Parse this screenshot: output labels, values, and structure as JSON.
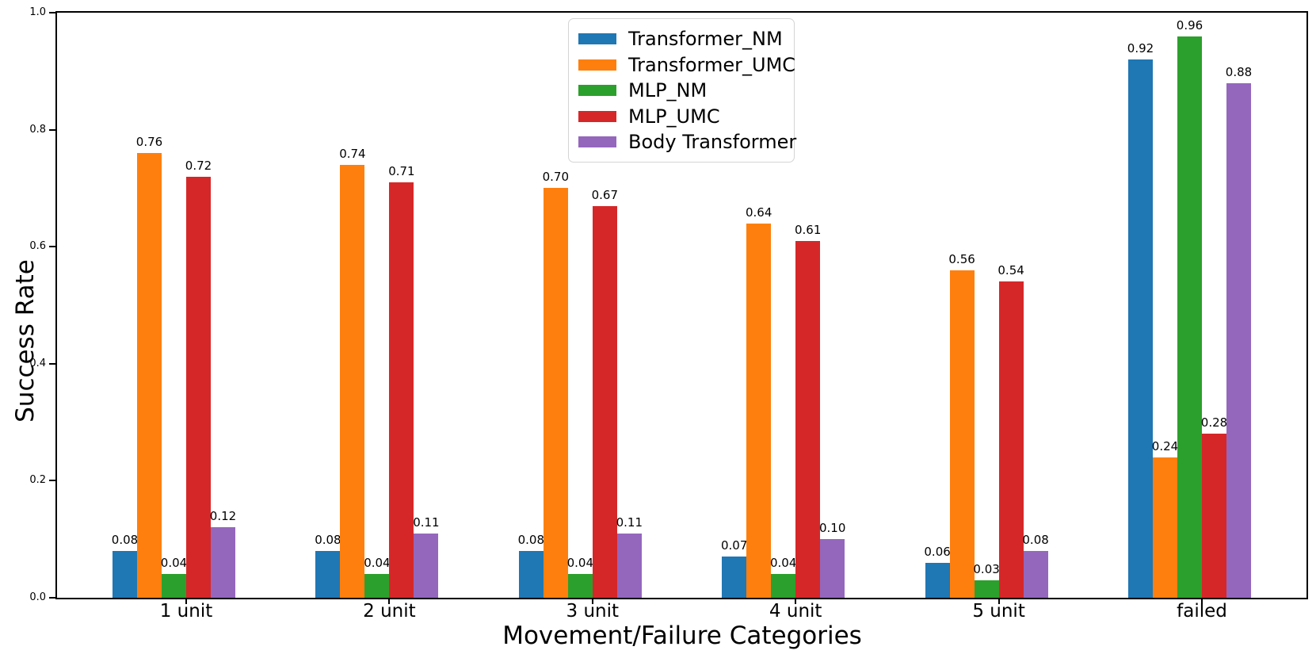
{
  "chart_data": {
    "type": "bar",
    "title": "",
    "xlabel": "Movement/Failure Categories",
    "ylabel": "Success Rate",
    "categories": [
      "1 unit",
      "2 unit",
      "3 unit",
      "4 unit",
      "5 unit",
      "failed"
    ],
    "series": [
      {
        "name": "Transformer_NM",
        "color": "#1f77b4",
        "values": [
          0.08,
          0.08,
          0.08,
          0.07,
          0.06,
          0.92
        ]
      },
      {
        "name": "Transformer_UMC",
        "color": "#ff7f0e",
        "values": [
          0.76,
          0.74,
          0.7,
          0.64,
          0.56,
          0.24
        ]
      },
      {
        "name": "MLP_NM",
        "color": "#2ca02c",
        "values": [
          0.04,
          0.04,
          0.04,
          0.04,
          0.03,
          0.96
        ]
      },
      {
        "name": "MLP_UMC",
        "color": "#d62728",
        "values": [
          0.72,
          0.71,
          0.67,
          0.61,
          0.54,
          0.28
        ]
      },
      {
        "name": "Body Transformer",
        "color": "#9467bd",
        "values": [
          0.12,
          0.11,
          0.11,
          0.1,
          0.08,
          0.88
        ]
      }
    ],
    "ylim": [
      0.0,
      1.0
    ],
    "yticks": [
      0.0,
      0.2,
      0.4,
      0.6,
      0.8,
      1.0
    ],
    "ytick_labels": [
      "0.0",
      "0.2",
      "0.4",
      "0.6",
      "0.8",
      "1.0"
    ],
    "value_label_decimals": 2,
    "grid": false,
    "legend_position": "upper center-left",
    "bar_value_labels_shown": true
  }
}
